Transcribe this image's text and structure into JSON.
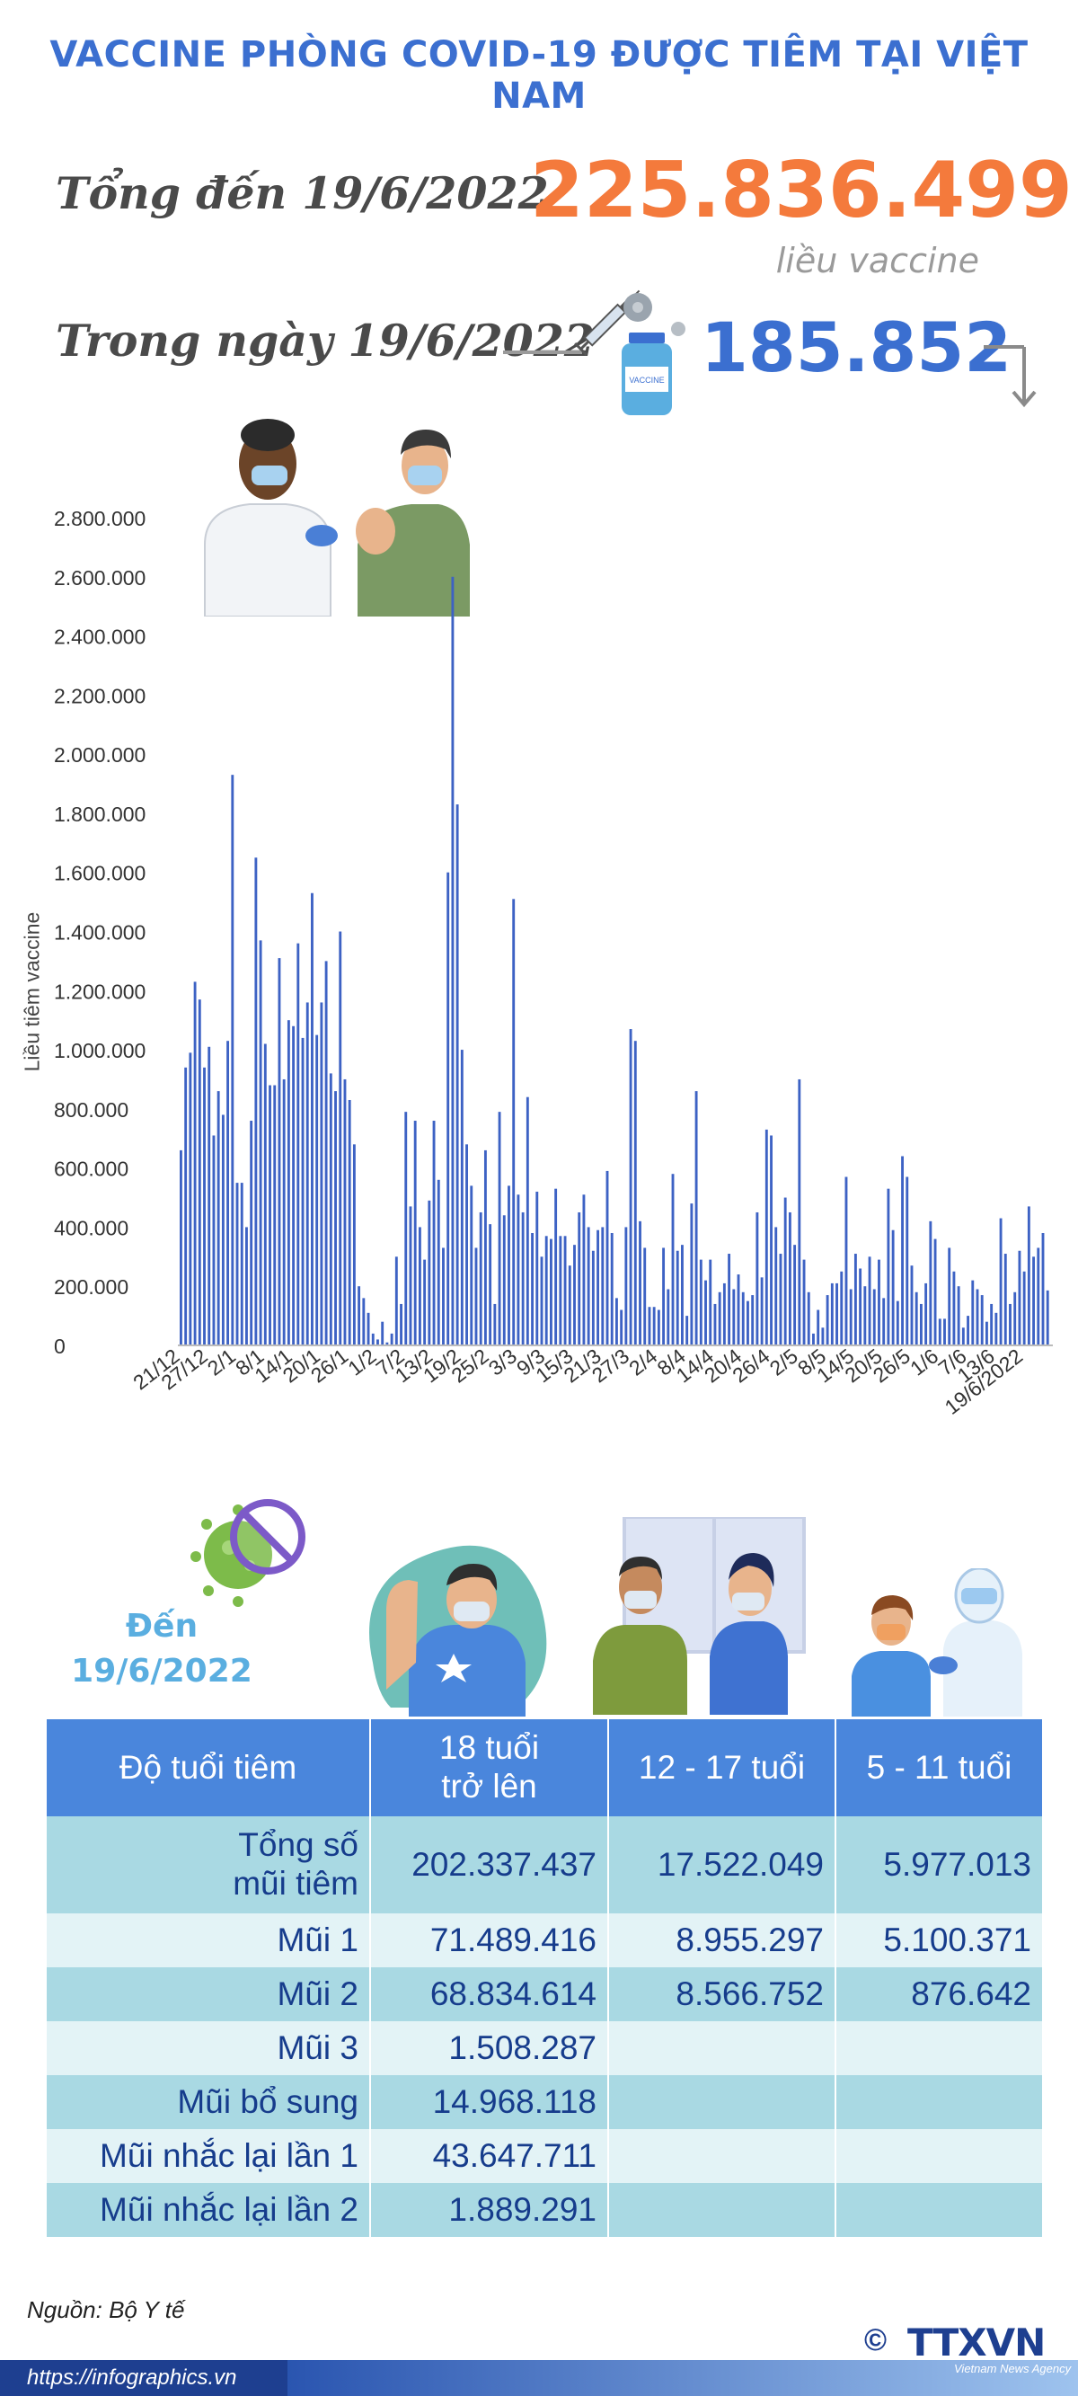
{
  "title": "VACCINE PHÒNG COVID-19 ĐƯỢC TIÊM TẠI VIỆT NAM",
  "summary": {
    "total_label": "Tổng đến 19/6/2022",
    "total_value": "225.836.499",
    "total_unit": "liều vaccine",
    "day_label": "Trong ngày 19/6/2022",
    "day_value": "185.852",
    "vial_label": "VACCINE"
  },
  "chart_data": {
    "type": "bar",
    "ylabel": "Liều tiêm vaccine",
    "ylim": [
      0,
      2800000
    ],
    "yticks": [
      {
        "value": 0,
        "label": "0"
      },
      {
        "value": 200000,
        "label": "200.000"
      },
      {
        "value": 400000,
        "label": "400.000"
      },
      {
        "value": 600000,
        "label": "600.000"
      },
      {
        "value": 800000,
        "label": "800.000"
      },
      {
        "value": 1000000,
        "label": "1.000.000"
      },
      {
        "value": 1200000,
        "label": "1.200.000"
      },
      {
        "value": 1400000,
        "label": "1.400.000"
      },
      {
        "value": 1600000,
        "label": "1.600.000"
      },
      {
        "value": 1800000,
        "label": "1.800.000"
      },
      {
        "value": 2000000,
        "label": "2.000.000"
      },
      {
        "value": 2200000,
        "label": "2.200.000"
      },
      {
        "value": 2400000,
        "label": "2.400.000"
      },
      {
        "value": 2600000,
        "label": "2.600.000"
      },
      {
        "value": 2800000,
        "label": "2.800.000"
      }
    ],
    "xticks": [
      {
        "index": 0,
        "label": "21/12"
      },
      {
        "index": 6,
        "label": "27/12"
      },
      {
        "index": 12,
        "label": "2/1"
      },
      {
        "index": 18,
        "label": "8/1"
      },
      {
        "index": 24,
        "label": "14/1"
      },
      {
        "index": 30,
        "label": "20/1"
      },
      {
        "index": 36,
        "label": "26/1"
      },
      {
        "index": 42,
        "label": "1/2"
      },
      {
        "index": 48,
        "label": "7/2"
      },
      {
        "index": 54,
        "label": "13/2"
      },
      {
        "index": 60,
        "label": "19/2"
      },
      {
        "index": 66,
        "label": "25/2"
      },
      {
        "index": 72,
        "label": "3/3"
      },
      {
        "index": 78,
        "label": "9/3"
      },
      {
        "index": 84,
        "label": "15/3"
      },
      {
        "index": 90,
        "label": "21/3"
      },
      {
        "index": 96,
        "label": "27/3"
      },
      {
        "index": 102,
        "label": "2/4"
      },
      {
        "index": 108,
        "label": "8/4"
      },
      {
        "index": 114,
        "label": "14/4"
      },
      {
        "index": 120,
        "label": "20/4"
      },
      {
        "index": 126,
        "label": "26/4"
      },
      {
        "index": 132,
        "label": "2/5"
      },
      {
        "index": 138,
        "label": "8/5"
      },
      {
        "index": 144,
        "label": "14/5"
      },
      {
        "index": 150,
        "label": "20/5"
      },
      {
        "index": 156,
        "label": "26/5"
      },
      {
        "index": 162,
        "label": "1/6"
      },
      {
        "index": 168,
        "label": "7/6"
      },
      {
        "index": 174,
        "label": "13/6"
      },
      {
        "index": 180,
        "label": "19/6/2022"
      }
    ],
    "values": [
      660000,
      940000,
      990000,
      1230000,
      1170000,
      940000,
      1010000,
      710000,
      860000,
      780000,
      1030000,
      1930000,
      550000,
      550000,
      400000,
      760000,
      1650000,
      1370000,
      1020000,
      880000,
      880000,
      1310000,
      900000,
      1100000,
      1080000,
      1360000,
      1040000,
      1160000,
      1530000,
      1050000,
      1160000,
      1300000,
      920000,
      860000,
      1400000,
      900000,
      830000,
      680000,
      200000,
      160000,
      110000,
      40000,
      20000,
      80000,
      10000,
      40000,
      300000,
      140000,
      790000,
      470000,
      760000,
      400000,
      290000,
      490000,
      760000,
      560000,
      330000,
      1600000,
      2600000,
      1830000,
      1000000,
      680000,
      540000,
      330000,
      450000,
      660000,
      410000,
      140000,
      790000,
      440000,
      540000,
      1510000,
      510000,
      450000,
      840000,
      380000,
      520000,
      300000,
      370000,
      360000,
      530000,
      370000,
      370000,
      270000,
      340000,
      450000,
      510000,
      400000,
      320000,
      390000,
      400000,
      590000,
      380000,
      160000,
      120000,
      400000,
      1070000,
      1030000,
      420000,
      330000,
      130000,
      130000,
      120000,
      330000,
      190000,
      580000,
      320000,
      340000,
      100000,
      480000,
      860000,
      290000,
      220000,
      290000,
      140000,
      180000,
      210000,
      310000,
      190000,
      240000,
      180000,
      150000,
      170000,
      450000,
      230000,
      730000,
      710000,
      400000,
      310000,
      500000,
      450000,
      340000,
      900000,
      290000,
      180000,
      40000,
      120000,
      60000,
      170000,
      210000,
      210000,
      250000,
      570000,
      190000,
      310000,
      260000,
      200000,
      300000,
      190000,
      290000,
      160000,
      530000,
      390000,
      150000,
      640000,
      570000,
      270000,
      180000,
      140000,
      210000,
      420000,
      360000,
      90000,
      90000,
      330000,
      250000,
      200000,
      60000,
      100000,
      220000,
      190000,
      170000,
      80000,
      140000,
      110000,
      430000,
      310000,
      140000,
      180000,
      320000,
      250000,
      470000,
      300000,
      330000,
      380000,
      185852
    ]
  },
  "table": {
    "until_line1": "Đến",
    "until_line2": "19/6/2022",
    "headers": [
      "Độ tuổi tiêm",
      "18 tuổi trở lên",
      "12 - 17 tuổi",
      "5 - 11 tuổi"
    ],
    "header_18_line1": "18 tuổi",
    "header_18_line2": "trở lên",
    "rows": [
      {
        "label_line1": "Tổng số",
        "label_line2": "mũi tiêm",
        "a18": "202.337.437",
        "a12": "17.522.049",
        "a5": "5.977.013"
      },
      {
        "label": "Mũi 1",
        "a18": "71.489.416",
        "a12": "8.955.297",
        "a5": "5.100.371"
      },
      {
        "label": "Mũi 2",
        "a18": "68.834.614",
        "a12": "8.566.752",
        "a5": "876.642"
      },
      {
        "label": "Mũi 3",
        "a18": "1.508.287",
        "a12": "",
        "a5": ""
      },
      {
        "label": "Mũi bổ sung",
        "a18": "14.968.118",
        "a12": "",
        "a5": ""
      },
      {
        "label": "Mũi nhắc lại lần 1",
        "a18": "43.647.711",
        "a12": "",
        "a5": ""
      },
      {
        "label": "Mũi nhắc lại lần 2",
        "a18": "1.889.291",
        "a12": "",
        "a5": ""
      }
    ]
  },
  "footer": {
    "source": "Nguồn: Bộ Y tế",
    "url": "https://infographics.vn",
    "logo_copyright": "©",
    "logo_text": "TTXVN",
    "logo_sub": "Vietnam News Agency"
  },
  "colors": {
    "title": "#3b6fd0",
    "total_value": "#f47a3c",
    "day_value": "#3b6fd0",
    "bar": "#3d62c4",
    "table_header": "#4a86dc",
    "row_dark": "#a9d9e3",
    "row_light": "#e3f3f6",
    "cell_text": "#163c8c"
  }
}
